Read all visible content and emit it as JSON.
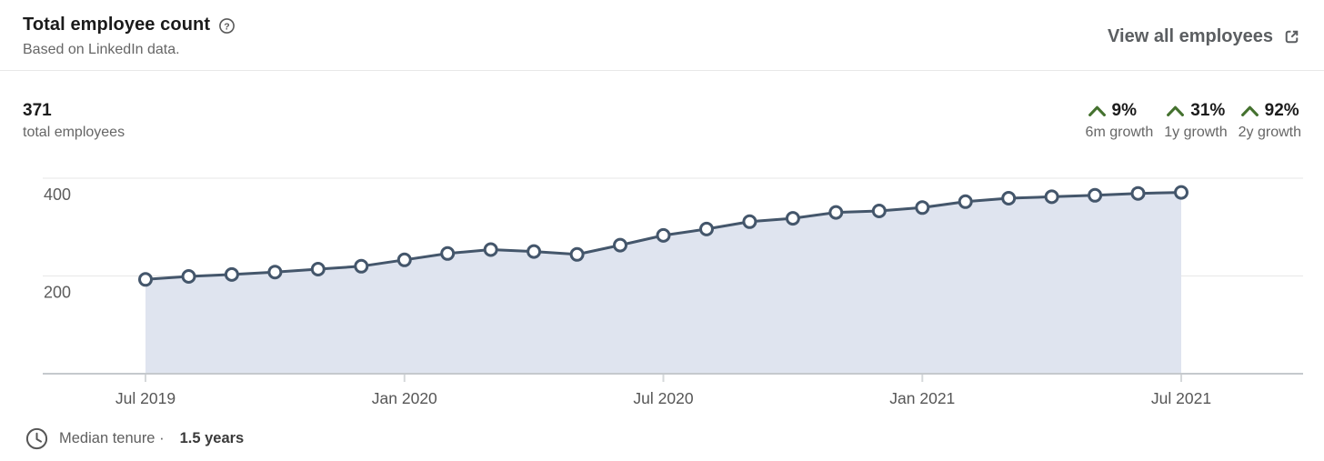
{
  "header": {
    "title": "Total employee count",
    "subtitle": "Based on LinkedIn data.",
    "help_icon": "question-mark-circle-icon",
    "view_all_label": "View all employees",
    "view_all_icon": "external-link-icon"
  },
  "stats": {
    "total_value": "371",
    "total_label": "total employees",
    "positive_color": "#44712e",
    "growth": [
      {
        "value": "9%",
        "label": "6m growth",
        "direction": "up"
      },
      {
        "value": "31%",
        "label": "1y growth",
        "direction": "up"
      },
      {
        "value": "92%",
        "label": "2y growth",
        "direction": "up"
      }
    ]
  },
  "footer": {
    "icon": "clock-icon",
    "label": "Median tenure ·",
    "value": "1.5 years"
  },
  "chart_data": {
    "type": "area",
    "title": "Total employee count",
    "xlabel": "",
    "ylabel": "",
    "x": [
      "Jul 2019",
      "Aug 2019",
      "Sep 2019",
      "Oct 2019",
      "Nov 2019",
      "Dec 2019",
      "Jan 2020",
      "Feb 2020",
      "Mar 2020",
      "Apr 2020",
      "May 2020",
      "Jun 2020",
      "Jul 2020",
      "Aug 2020",
      "Sep 2020",
      "Oct 2020",
      "Nov 2020",
      "Dec 2020",
      "Jan 2021",
      "Feb 2021",
      "Mar 2021",
      "Apr 2021",
      "May 2021",
      "Jun 2021",
      "Jul 2021"
    ],
    "values": [
      193,
      199,
      203,
      208,
      214,
      220,
      233,
      246,
      254,
      250,
      244,
      263,
      283,
      296,
      311,
      318,
      330,
      333,
      340,
      352,
      359,
      362,
      365,
      369,
      371
    ],
    "x_tick_labels": [
      "Jul 2019",
      "Jan 2020",
      "Jul 2020",
      "Jan 2021",
      "Jul 2021"
    ],
    "y_ticks": [
      200,
      400
    ],
    "ylim": [
      0,
      418
    ],
    "grid": true,
    "legend": "none",
    "line_color": "#44566b",
    "fill_color": "#dfe4ef",
    "marker_fill": "#ffffff",
    "grid_color": "#e7e7e7",
    "baseline_color": "#c5c9cd"
  }
}
